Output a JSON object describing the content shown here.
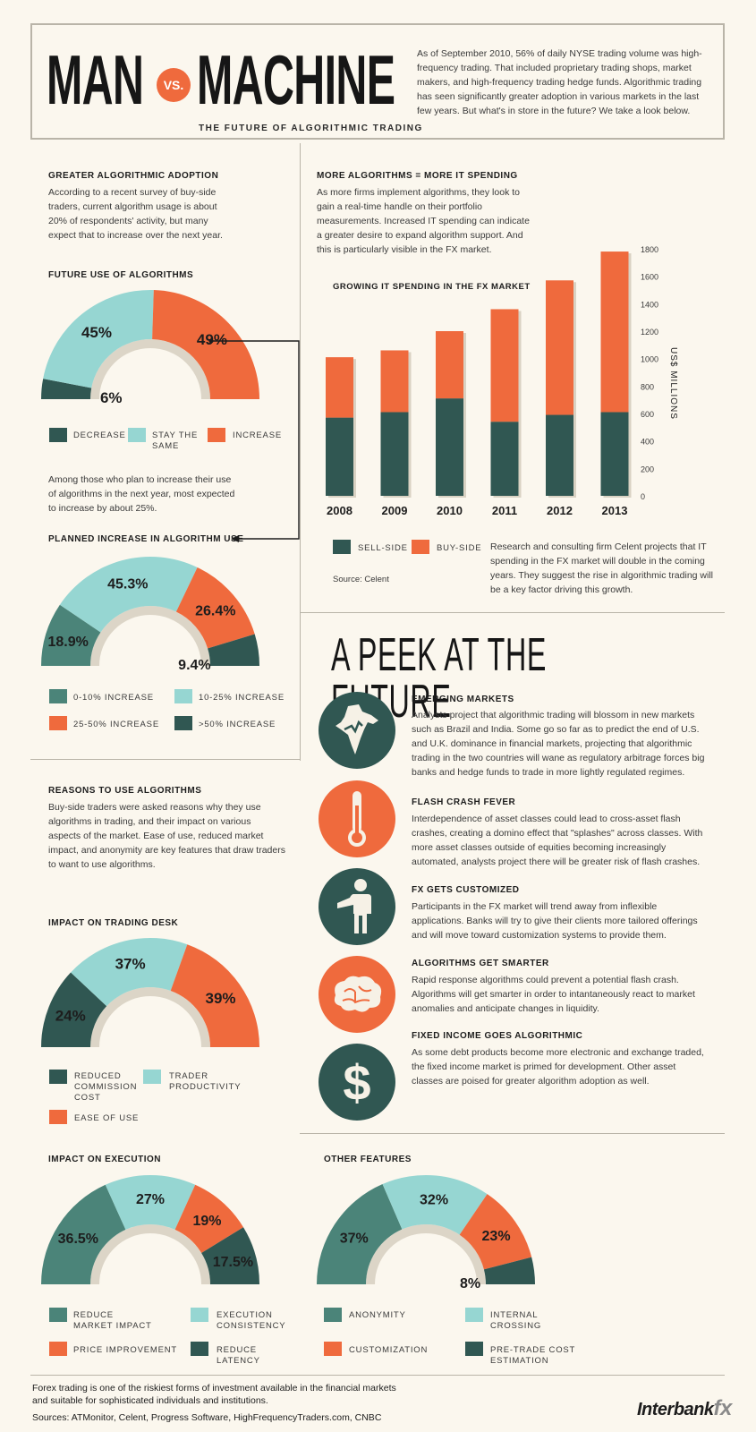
{
  "colors": {
    "dark": "#305752",
    "teal": "#4b8479",
    "light": "#96d6d2",
    "orange": "#ef6a3d"
  },
  "header": {
    "title_left": "MAN",
    "vs": "VS.",
    "title_right": "MACHINE",
    "subtitle": "THE FUTURE OF ALGORITHMIC TRADING",
    "intro": "As of September 2010, 56% of daily NYSE trading volume was high-frequency trading. That included proprietary trading shops, market makers, and high-frequency trading hedge funds. Algorithmic trading has seen significantly greater adoption in various markets in the last few years. But what's in store in the future? We take a look below."
  },
  "adoption": {
    "heading": "GREATER ALGORITHMIC ADOPTION",
    "text": "According to a recent survey of buy-side traders, current algorithm usage is about 20% of respondents' activity, but many expect that to increase over the next year."
  },
  "spending": {
    "heading": "MORE ALGORITHMS = MORE IT SPENDING",
    "text": "As more firms implement algorithms, they look to gain a real-time handle on their portfolio measurements. Increased IT spending can indicate a greater desire to expand algorithm support. And this is particularly visible in the FX market.",
    "source": "Source: Celent",
    "note": "Research and consulting firm Celent projects that IT spending in the FX market will double in the coming years. They suggest the rise in algorithmic trading will be a key factor driving this growth."
  },
  "mid_text": "Among those who plan to increase their use of algorithms in the next year, most expected to increase by about 25%.",
  "reasons": {
    "heading": "REASONS TO USE ALGORITHMS",
    "text": "Buy-side traders were asked reasons why they use algorithms in trading, and their impact on various aspects of the market. Ease of use, reduced market impact, and anonymity are key features that draw traders to want to use algorithms."
  },
  "chart_data": [
    {
      "id": "future",
      "type": "pie",
      "title": "FUTURE USE OF ALGORITHMS",
      "slices": [
        {
          "label": "DECREASE",
          "value": 6,
          "text": "6%",
          "color": "#305752"
        },
        {
          "label": "STAY THE SAME",
          "value": 45,
          "text": "45%",
          "color": "#96d6d2"
        },
        {
          "label": "INCREASE",
          "value": 49,
          "text": "49%",
          "color": "#ef6a3d"
        }
      ]
    },
    {
      "id": "planned",
      "type": "pie",
      "title": "PLANNED INCREASE IN ALGORITHM USE",
      "slices": [
        {
          "label": "0-10% INCREASE",
          "value": 18.9,
          "text": "18.9%",
          "color": "#4b8479"
        },
        {
          "label": "10-25% INCREASE",
          "value": 45.3,
          "text": "45.3%",
          "color": "#96d6d2"
        },
        {
          "label": "25-50% INCREASE",
          "value": 26.4,
          "text": "26.4%",
          "color": "#ef6a3d"
        },
        {
          "label": ">50% INCREASE",
          "value": 9.4,
          "text": "9.4%",
          "color": "#305752"
        }
      ]
    },
    {
      "id": "fx",
      "type": "bar",
      "title": "GROWING IT SPENDING IN THE FX MARKET",
      "categories": [
        "2008",
        "2009",
        "2010",
        "2011",
        "2012",
        "2013"
      ],
      "series": [
        {
          "name": "SELL-SIDE",
          "values": [
            570,
            610,
            710,
            540,
            590,
            610
          ],
          "color": "#305752"
        },
        {
          "name": "BUY-SIDE",
          "values": [
            440,
            450,
            490,
            820,
            980,
            1170
          ],
          "color": "#ef6a3d"
        }
      ],
      "ylabel": "US$ MILLIONS",
      "ylim": [
        0,
        1800
      ],
      "yticks": [
        "0",
        "200",
        "400",
        "600",
        "800",
        "1000",
        "1200",
        "1400",
        "1600",
        "1800"
      ]
    },
    {
      "id": "desk",
      "type": "pie",
      "title": "IMPACT ON TRADING DESK",
      "slices": [
        {
          "label": "REDUCED COMMISSION COST",
          "value": 24,
          "text": "24%",
          "color": "#305752"
        },
        {
          "label": "TRADER PRODUCTIVITY",
          "value": 37,
          "text": "37%",
          "color": "#96d6d2"
        },
        {
          "label": "EASE OF USE",
          "value": 39,
          "text": "39%",
          "color": "#ef6a3d"
        }
      ]
    },
    {
      "id": "exec",
      "type": "pie",
      "title": "IMPACT ON EXECUTION",
      "slices": [
        {
          "label": "REDUCE MARKET IMPACT",
          "value": 36.5,
          "text": "36.5%",
          "color": "#4b8479"
        },
        {
          "label": "EXECUTION CONSISTENCY",
          "value": 27,
          "text": "27%",
          "color": "#96d6d2"
        },
        {
          "label": "PRICE IMPROVEMENT",
          "value": 19,
          "text": "19%",
          "color": "#ef6a3d"
        },
        {
          "label": "REDUCE LATENCY",
          "value": 17.5,
          "text": "17.5%",
          "color": "#305752"
        }
      ]
    },
    {
      "id": "other",
      "type": "pie",
      "title": "OTHER FEATURES",
      "slices": [
        {
          "label": "ANONYMITY",
          "value": 37,
          "text": "37%",
          "color": "#4b8479"
        },
        {
          "label": "INTERNAL CROSSING",
          "value": 32,
          "text": "32%",
          "color": "#96d6d2"
        },
        {
          "label": "CUSTOMIZATION",
          "value": 23,
          "text": "23%",
          "color": "#ef6a3d"
        },
        {
          "label": "PRE-TRADE COST ESTIMATION",
          "value": 8,
          "text": "8%",
          "color": "#305752"
        }
      ]
    }
  ],
  "legends": {
    "future": [
      "DECREASE",
      "STAY THE",
      "SAME",
      "INCREASE"
    ],
    "planned": [
      "0-10% INCREASE",
      "10-25% INCREASE",
      "25-50% INCREASE",
      ">50% INCREASE"
    ],
    "fx": [
      "SELL-SIDE",
      "BUY-SIDE"
    ],
    "desk": [
      "REDUCED",
      "COMMISSION",
      "COST",
      "TRADER",
      "PRODUCTIVITY",
      "EASE OF USE"
    ],
    "exec": [
      "REDUCE",
      "MARKET IMPACT",
      "EXECUTION",
      "CONSISTENCY",
      "PRICE IMPROVEMENT",
      "REDUCE",
      "LATENCY"
    ],
    "other": [
      "ANONYMITY",
      "INTERNAL",
      "CROSSING",
      "CUSTOMIZATION",
      "PRE-TRADE COST",
      "ESTIMATION"
    ]
  },
  "future": {
    "title": "A PEEK AT THE FUTURE",
    "items": [
      {
        "icon": "india-map-icon",
        "heading": "EMERGING MARKETS",
        "text": "Analysts project that algorithmic trading will blossom in new markets such as Brazil and India. Some go so far as to predict the end of U.S. and U.K. dominance in financial markets, projecting that algorithmic trading in the two countries will wane as regulatory arbitrage forces big banks and hedge funds to trade in more lightly regulated regimes."
      },
      {
        "icon": "thermometer-icon",
        "heading": "FLASH CRASH FEVER",
        "text": "Interdependence of asset classes could lead to cross-asset flash crashes, creating a domino effect that \"splashes\" across classes. With more asset classes outside of equities becoming increasingly automated, analysts project there will be greater risk of flash crashes."
      },
      {
        "icon": "person-icon",
        "heading": "FX GETS CUSTOMIZED",
        "text": "Participants in the FX market will trend away from inflexible applications. Banks will try to give their clients more tailored offerings and will move toward customization systems to provide them."
      },
      {
        "icon": "brain-icon",
        "heading": "ALGORITHMS GET SMARTER",
        "text": "Rapid response algorithms could prevent a potential flash crash. Algorithms will get smarter in order to intantaneously react to market anomalies and anticipate changes in liquidity."
      },
      {
        "icon": "dollar-icon",
        "heading": "FIXED INCOME GOES ALGORITHMIC",
        "text": "As some debt products become more electronic and exchange traded, the fixed income market is primed for development. Other asset classes are poised for greater algorithm adoption as well."
      }
    ]
  },
  "footer": {
    "disclaimer": "Forex trading is one of the riskiest forms of investment available in the financial markets and suitable for sophisticated individuals and institutions.",
    "sources": "Sources: ATMonitor, Celent, Progress Software, HighFrequencyTraders.com, CNBC",
    "brand": "Interbank",
    "brand_fx": "fx"
  }
}
